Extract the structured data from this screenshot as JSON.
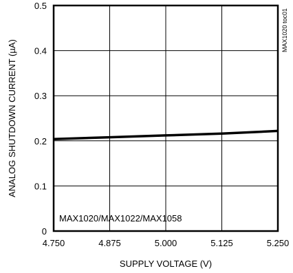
{
  "chart_data": {
    "type": "line",
    "xlabel": "SUPPLY VOLTAGE (V)",
    "ylabel": "ANALOG SHUTDOWN CURRENT (µA)",
    "xlim": [
      4.75,
      5.25
    ],
    "ylim": [
      0,
      0.5
    ],
    "x_tick_labels": [
      "4.750",
      "4.875",
      "5.000",
      "5.125",
      "5.250"
    ],
    "y_tick_labels": [
      "0",
      "0.1",
      "0.2",
      "0.3",
      "0.4",
      "0.5"
    ],
    "grid": true,
    "annotation": "MAX1020/MAX1022/MAX1058",
    "side_id": "MAX1020 toc01",
    "series": [
      {
        "x": [
          4.75,
          4.875,
          5.0,
          5.125,
          5.25
        ],
        "y": [
          0.204,
          0.208,
          0.212,
          0.216,
          0.222
        ]
      }
    ]
  }
}
